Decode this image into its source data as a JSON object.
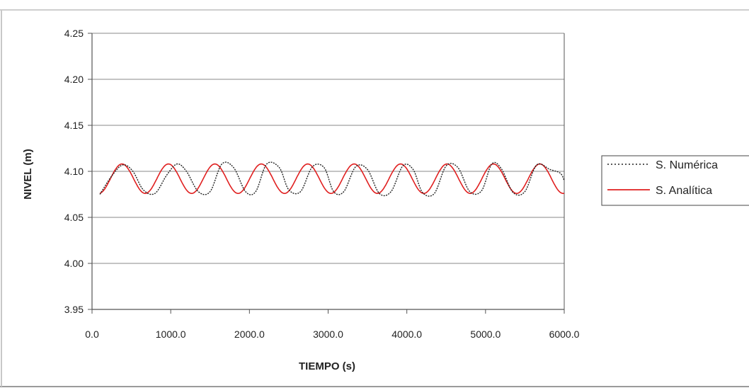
{
  "chart_data": {
    "type": "line",
    "title": "",
    "xlabel": "TIEMPO (s)",
    "ylabel": "NIVEL (m)",
    "xlim": [
      0,
      6000
    ],
    "ylim": [
      3.95,
      4.25
    ],
    "x_ticks": [
      "0.0",
      "1000.0",
      "2000.0",
      "3000.0",
      "4000.0",
      "5000.0",
      "6000.0"
    ],
    "y_ticks": [
      "4.25",
      "4.20",
      "4.15",
      "4.10",
      "4.05",
      "4.00",
      "3.95"
    ],
    "grid": "horizontal",
    "legend_position": "right",
    "series": [
      {
        "name": "S. Numérica",
        "style": "dotted",
        "color": "#222222",
        "x": [
          100,
          250,
          390,
          520,
          650,
          800,
          950,
          1080,
          1200,
          1350,
          1500,
          1650,
          1800,
          1950,
          2080,
          2220,
          2380,
          2500,
          2650,
          2800,
          2950,
          3070,
          3200,
          3350,
          3500,
          3650,
          3800,
          3950,
          4080,
          4200,
          4350,
          4500,
          4650,
          4800,
          4950,
          5080,
          5200,
          5350,
          5500,
          5650,
          5820,
          5950,
          6000
        ],
        "values": [
          4.075,
          4.095,
          4.107,
          4.1,
          4.08,
          4.076,
          4.096,
          4.108,
          4.1,
          4.078,
          4.078,
          4.108,
          4.104,
          4.078,
          4.078,
          4.108,
          4.104,
          4.08,
          4.078,
          4.105,
          4.104,
          4.078,
          4.078,
          4.105,
          4.102,
          4.076,
          4.078,
          4.106,
          4.102,
          4.077,
          4.076,
          4.106,
          4.104,
          4.078,
          4.079,
          4.108,
          4.103,
          4.077,
          4.078,
          4.107,
          4.102,
          4.098,
          4.09
        ]
      },
      {
        "name": "S. Analítica",
        "style": "solid",
        "color": "#e02020",
        "amplitude": 0.016,
        "mean": 4.092,
        "period": 590,
        "x_start": 100,
        "x_end": 6000
      }
    ]
  },
  "colors": {
    "numerica": "#222222",
    "analitica": "#e02020",
    "grid": "#888888",
    "axis": "#555555"
  }
}
